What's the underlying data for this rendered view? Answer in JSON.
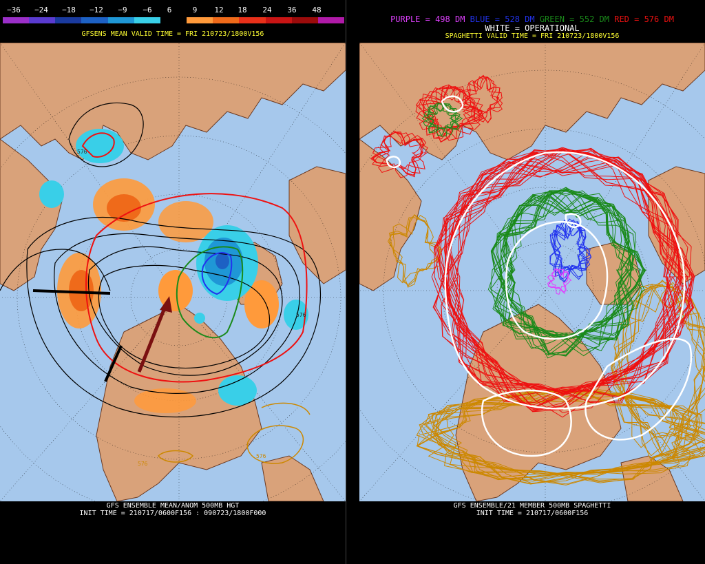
{
  "left": {
    "legend": {
      "labels": [
        "−36",
        "−24",
        "−18",
        "−12",
        "−9",
        "−6",
        "6",
        "9",
        "12",
        "18",
        "24",
        "36",
        "48"
      ],
      "colors": [
        "#9b2fc9",
        "#5a3bd0",
        "#1a3a9e",
        "#1d61c4",
        "#1f97d6",
        "#39cfe8",
        "#000000",
        "#ff9a3b",
        "#ef6a1a",
        "#e8301a",
        "#c81414",
        "#9b0b0b",
        "#b01aa8"
      ]
    },
    "valid_time": "GFSENS MEAN VALID TIME = FRI 210723/1800V156",
    "bottom_line1": "GFS ENSEMBLE MEAN/ANOM 500MB HGT",
    "bottom_line2": "INIT TIME = 210717/0600F156 : 090723/1800F000",
    "contour_labels": [
      "576",
      "576",
      "576",
      "576"
    ]
  },
  "right": {
    "legend_purple": "PURPLE = 498 DM",
    "legend_blue": "BLUE = 528 DM",
    "legend_green": "GREEN = 552 DM",
    "legend_red": "RED = 576 DM",
    "legend_white": "WHITE = OPERATIONAL",
    "valid_time": "SPAGHETTI VALID TIME = FRI 210723/1800V156",
    "bottom_line1": "GFS ENSEMBLE/21 MEMBER 500MB SPAGHETTI",
    "bottom_line2": "INIT TIME = 210717/0600F156"
  },
  "colors": {
    "ocean": "#a6c8ec",
    "land": "#d9a27a",
    "purple": "#e040ff",
    "blue": "#2233ee",
    "green": "#1a8a1a",
    "red": "#ee1111",
    "orange": "#cc8800",
    "white": "#ffffff"
  }
}
